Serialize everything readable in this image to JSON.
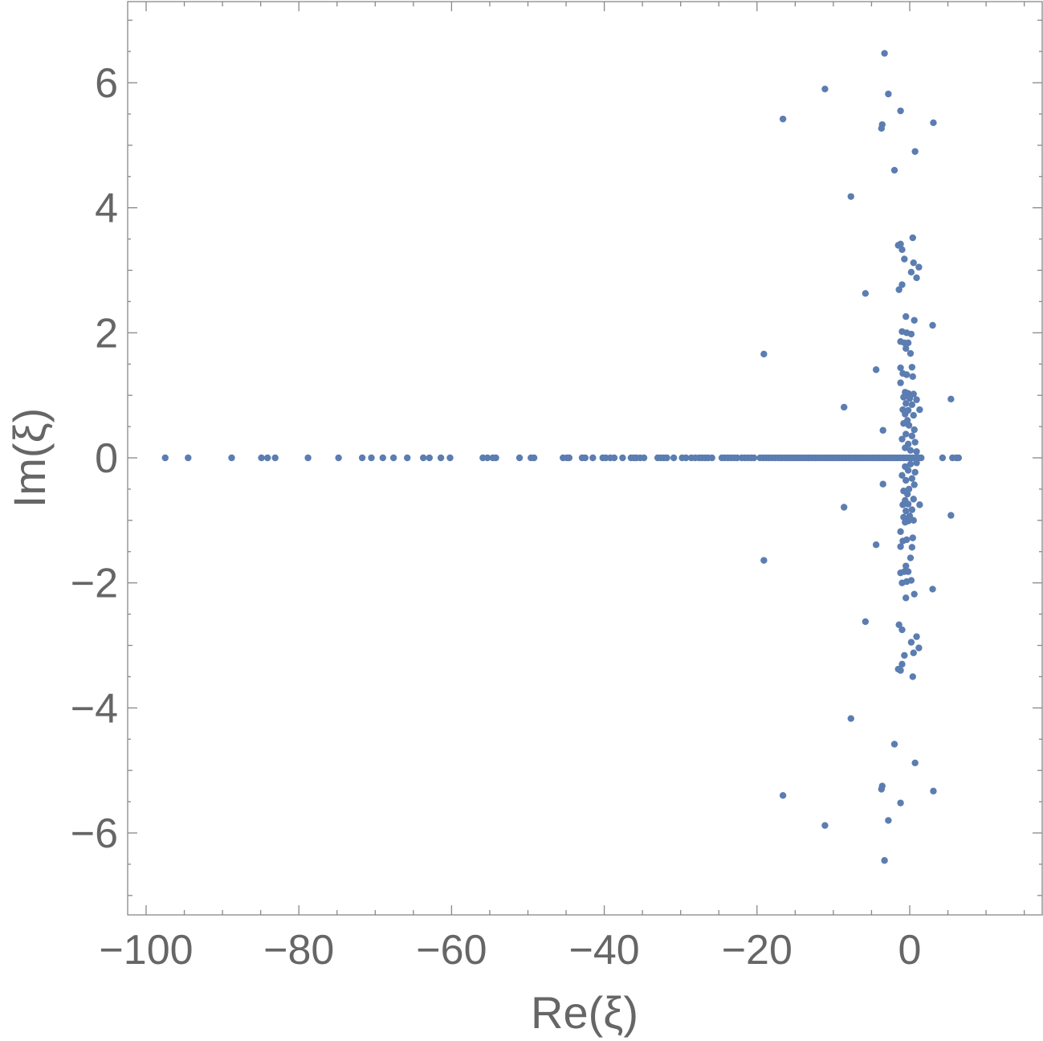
{
  "chart_data": {
    "type": "scatter",
    "xlabel": "Re(ξ)",
    "ylabel": "Im(ξ)",
    "xlim": [
      -103,
      18
    ],
    "ylim": [
      -7.3,
      7.3
    ],
    "grid": false,
    "legend": "none",
    "x_ticks": [
      -100,
      -80,
      -60,
      -40,
      -20,
      0
    ],
    "x_tick_labels": [
      "−100",
      "−80",
      "−60",
      "−40",
      "−20",
      "0"
    ],
    "y_ticks": [
      -6,
      -4,
      -2,
      0,
      2,
      4,
      6
    ],
    "y_tick_labels": [
      "−6",
      "−4",
      "−2",
      "0",
      "2",
      "4",
      "6"
    ],
    "color": "#5b7db1",
    "series": [
      {
        "real_axis_points": [
          -97.5,
          -94.5,
          -88.8,
          -84.9,
          -84.1,
          -83.1,
          -78.8,
          -74.8,
          -71.7,
          -70.5,
          -69.0,
          -67.6,
          -65.8,
          -63.7,
          -62.9,
          -61.4,
          -60.2,
          -55.9,
          -55.3,
          -54.6,
          -54.2,
          -51.1,
          -49.6,
          -49.2,
          -45.4,
          -44.9,
          -44.6,
          -42.9,
          -42.5,
          -41.5,
          -40.2,
          -39.8,
          -39.2,
          -38.7,
          -37.6,
          -36.5,
          -36.1,
          -35.8,
          -35.3,
          -34.8,
          -33.0,
          -32.6,
          -32.2,
          -31.8,
          -30.9,
          -29.8,
          -29.3,
          -28.6,
          -28.1,
          -27.6,
          -27.2,
          -26.8,
          -26.4,
          -25.9,
          -24.6,
          -24.2,
          -23.8,
          -23.4,
          -23.0,
          -22.6,
          -22.0,
          -21.6,
          -21.2,
          -20.8,
          -20.4,
          -19.6,
          -19.2,
          -18.8,
          -18.4,
          -18.0,
          -17.6,
          -17.2,
          -16.8,
          -16.4,
          -16.0,
          -15.6,
          -15.2,
          -14.8,
          -14.4,
          -14.0,
          -13.6,
          -13.2,
          -12.8,
          -12.4,
          -12.0,
          -11.6,
          -11.2,
          -10.8,
          -10.4,
          -10.0,
          -9.6,
          -9.2,
          -8.8,
          -8.4,
          -8.0,
          -7.6,
          -7.2,
          -6.8,
          -6.4,
          -6.0,
          -5.6,
          -5.2,
          -4.8,
          -4.4,
          -4.0,
          -3.6,
          -3.2,
          -2.8,
          -2.4,
          -2.0,
          -1.6,
          -1.2,
          -0.8,
          -0.4,
          0.0,
          0.4,
          0.8,
          1.2,
          1.5,
          4.3,
          5.6,
          6.1,
          6.4
        ],
        "complex_points": [
          [
            -3.3,
            6.47
          ],
          [
            -11.1,
            5.9
          ],
          [
            -2.8,
            5.82
          ],
          [
            -16.6,
            5.42
          ],
          [
            -1.2,
            5.55
          ],
          [
            -3.6,
            5.33
          ],
          [
            -3.7,
            5.27
          ],
          [
            3.1,
            5.36
          ],
          [
            0.7,
            4.9
          ],
          [
            -2.0,
            4.6
          ],
          [
            -7.7,
            4.18
          ],
          [
            0.4,
            3.52
          ],
          [
            -1.5,
            3.4
          ],
          [
            -1.2,
            3.42
          ],
          [
            -1.0,
            3.33
          ],
          [
            -0.7,
            3.18
          ],
          [
            0.5,
            3.12
          ],
          [
            1.2,
            3.05
          ],
          [
            0.2,
            2.97
          ],
          [
            0.9,
            2.88
          ],
          [
            -1.0,
            2.77
          ],
          [
            -1.4,
            2.69
          ],
          [
            -5.8,
            2.63
          ],
          [
            -0.5,
            2.26
          ],
          [
            0.6,
            2.2
          ],
          [
            3.0,
            2.12
          ],
          [
            -1.0,
            2.02
          ],
          [
            -0.4,
            2.0
          ],
          [
            0.2,
            1.98
          ],
          [
            -1.2,
            1.86
          ],
          [
            -0.7,
            1.84
          ],
          [
            -0.2,
            1.84
          ],
          [
            -0.5,
            1.75
          ],
          [
            0.1,
            1.67
          ],
          [
            -19.1,
            1.66
          ],
          [
            -1.2,
            1.44
          ],
          [
            0.3,
            1.45
          ],
          [
            -4.4,
            1.41
          ],
          [
            -0.9,
            1.35
          ],
          [
            -0.4,
            1.33
          ],
          [
            0.4,
            1.3
          ],
          [
            -1.2,
            1.2
          ],
          [
            -0.6,
            1.05
          ],
          [
            -0.2,
            1.03
          ],
          [
            0.5,
            1.02
          ],
          [
            -0.8,
            0.97
          ],
          [
            0.0,
            0.95
          ],
          [
            0.9,
            0.93
          ],
          [
            5.4,
            0.94
          ],
          [
            -0.5,
            0.87
          ],
          [
            0.3,
            0.85
          ],
          [
            -8.6,
            0.81
          ],
          [
            -0.9,
            0.77
          ],
          [
            -0.2,
            0.76
          ],
          [
            1.3,
            0.77
          ],
          [
            -0.6,
            0.7
          ],
          [
            0.5,
            0.68
          ],
          [
            -0.3,
            0.6
          ],
          [
            -0.8,
            0.55
          ],
          [
            -0.1,
            0.52
          ],
          [
            0.6,
            0.45
          ],
          [
            -3.5,
            0.44
          ],
          [
            -0.5,
            0.38
          ],
          [
            0.3,
            0.35
          ],
          [
            -1.0,
            0.3
          ],
          [
            -0.2,
            0.22
          ],
          [
            0.7,
            0.25
          ],
          [
            -0.6,
            0.16
          ],
          [
            0.1,
            0.12
          ],
          [
            0.9,
            0.1
          ],
          [
            -3.3,
            -6.44
          ],
          [
            -11.1,
            -5.88
          ],
          [
            -2.8,
            -5.8
          ],
          [
            -16.6,
            -5.4
          ],
          [
            -1.2,
            -5.52
          ],
          [
            -3.6,
            -5.25
          ],
          [
            -3.7,
            -5.3
          ],
          [
            3.1,
            -5.33
          ],
          [
            0.7,
            -4.88
          ],
          [
            -2.0,
            -4.58
          ],
          [
            -7.7,
            -4.17
          ],
          [
            0.4,
            -3.5
          ],
          [
            -1.5,
            -3.38
          ],
          [
            -1.2,
            -3.4
          ],
          [
            -1.0,
            -3.3
          ],
          [
            -0.7,
            -3.16
          ],
          [
            0.5,
            -3.12
          ],
          [
            1.2,
            -3.04
          ],
          [
            0.2,
            -2.95
          ],
          [
            0.9,
            -2.86
          ],
          [
            -1.0,
            -2.75
          ],
          [
            -1.4,
            -2.67
          ],
          [
            -5.8,
            -2.62
          ],
          [
            -0.5,
            -2.24
          ],
          [
            0.6,
            -2.18
          ],
          [
            3.0,
            -2.1
          ],
          [
            -1.0,
            -2.0
          ],
          [
            -0.4,
            -1.98
          ],
          [
            0.2,
            -1.96
          ],
          [
            -1.2,
            -1.84
          ],
          [
            -0.7,
            -1.82
          ],
          [
            -0.2,
            -1.82
          ],
          [
            -0.5,
            -1.73
          ],
          [
            0.1,
            -1.6
          ],
          [
            -19.1,
            -1.64
          ],
          [
            -1.2,
            -1.42
          ],
          [
            0.3,
            -1.43
          ],
          [
            -4.4,
            -1.39
          ],
          [
            -0.9,
            -1.33
          ],
          [
            -0.4,
            -1.31
          ],
          [
            0.4,
            -1.28
          ],
          [
            -1.2,
            -1.18
          ],
          [
            -0.6,
            -1.03
          ],
          [
            -0.2,
            -1.01
          ],
          [
            0.5,
            -1.0
          ],
          [
            -0.8,
            -0.95
          ],
          [
            0.0,
            -0.93
          ],
          [
            5.4,
            -0.92
          ],
          [
            -0.5,
            -0.85
          ],
          [
            0.3,
            -0.83
          ],
          [
            -8.6,
            -0.79
          ],
          [
            -0.9,
            -0.75
          ],
          [
            -0.2,
            -0.74
          ],
          [
            1.3,
            -0.75
          ],
          [
            -0.6,
            -0.68
          ],
          [
            0.5,
            -0.66
          ],
          [
            -0.3,
            -0.58
          ],
          [
            -0.8,
            -0.53
          ],
          [
            -0.1,
            -0.5
          ],
          [
            0.6,
            -0.43
          ],
          [
            -3.5,
            -0.42
          ],
          [
            -0.5,
            -0.36
          ],
          [
            0.3,
            -0.33
          ],
          [
            -1.0,
            -0.28
          ],
          [
            -0.2,
            -0.2
          ],
          [
            0.7,
            -0.23
          ],
          [
            -0.6,
            -0.14
          ],
          [
            0.1,
            -0.1
          ],
          [
            0.9,
            -0.08
          ]
        ]
      }
    ]
  }
}
